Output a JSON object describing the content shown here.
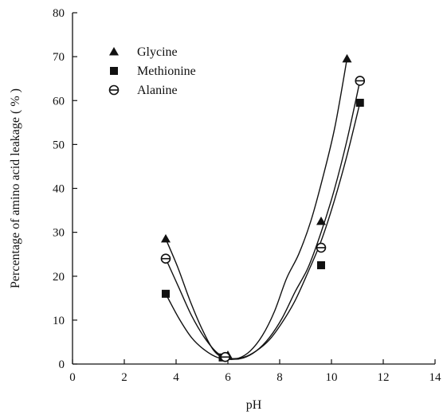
{
  "chart_data": {
    "type": "scatter",
    "title": "",
    "xlabel": "pH",
    "ylabel": "Percentage of amino acid leakage ( % )",
    "xlim": [
      0,
      14
    ],
    "ylim": [
      0,
      80
    ],
    "x_ticks": [
      0,
      2,
      4,
      6,
      8,
      10,
      12,
      14
    ],
    "y_ticks": [
      0,
      10,
      20,
      30,
      40,
      50,
      60,
      70,
      80
    ],
    "x_tick_labels": [
      "0",
      "2",
      "4",
      "6",
      "8",
      "10",
      "12",
      "14"
    ],
    "y_tick_labels": [
      "0",
      "10",
      "20",
      "30",
      "40",
      "50",
      "60",
      "70",
      "80"
    ],
    "grid": false,
    "legend_position": "top-left",
    "line_color": "#111111",
    "series": [
      {
        "name": "Glycine",
        "marker": "triangle",
        "x": [
          3.6,
          6.0,
          9.6,
          10.6
        ],
        "y": [
          28.5,
          2.0,
          32.5,
          69.5
        ],
        "curve_y": [
          28.5,
          22.0,
          14.5,
          8.0,
          3.0,
          1.2,
          1.3,
          3.0,
          6.5,
          12.0,
          19.5,
          25.0,
          32.5,
          42.5,
          54.0,
          69.5
        ]
      },
      {
        "name": "Methionine",
        "marker": "square",
        "x": [
          3.6,
          5.8,
          9.6,
          11.1
        ],
        "y": [
          16.0,
          1.5,
          22.5,
          59.5
        ],
        "curve_y": [
          16.0,
          10.5,
          6.0,
          3.2,
          1.5,
          1.2,
          1.5,
          3.0,
          5.5,
          9.5,
          14.5,
          21.0,
          28.0,
          37.0,
          47.5,
          59.5
        ]
      },
      {
        "name": "Alanine",
        "marker": "circle-half",
        "x": [
          3.6,
          5.9,
          9.6,
          11.1
        ],
        "y": [
          24.0,
          1.6,
          26.5,
          64.5
        ],
        "curve_y": [
          24.0,
          17.5,
          11.0,
          6.0,
          2.5,
          1.2,
          1.4,
          3.0,
          6.0,
          10.5,
          16.5,
          22.0,
          30.0,
          39.5,
          51.0,
          64.5
        ]
      }
    ]
  }
}
